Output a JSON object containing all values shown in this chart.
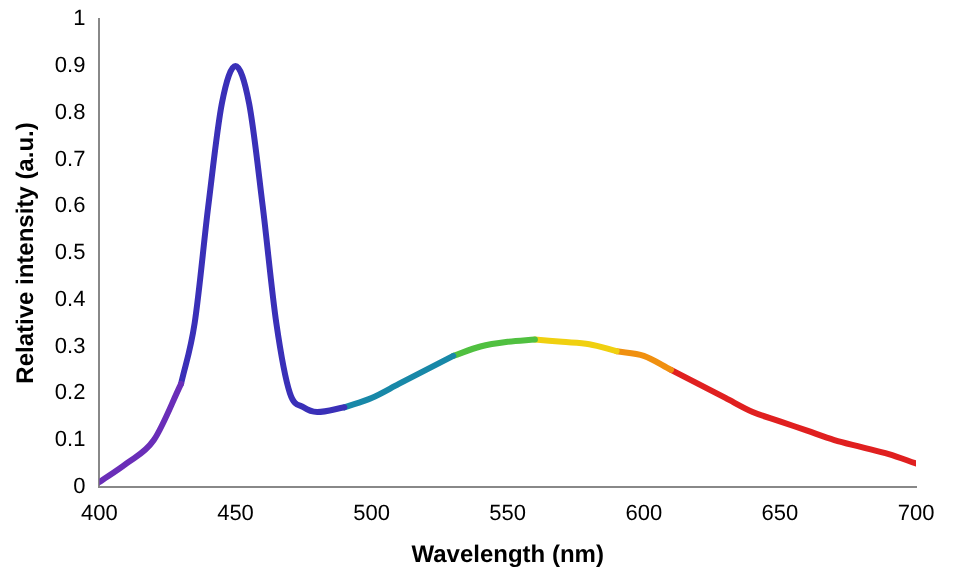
{
  "chart_data": {
    "type": "line",
    "xlabel": "Wavelength (nm)",
    "ylabel": "Relative intensity (a.u.)",
    "series": [
      {
        "color": "#6a2eb8",
        "x": [
          400,
          410,
          420,
          430
        ],
        "values": [
          0.01,
          0.05,
          0.1,
          0.22
        ]
      },
      {
        "color": "#3a30b8",
        "x": [
          430,
          435,
          440,
          445,
          450,
          455,
          460,
          465,
          470,
          475,
          480,
          490
        ],
        "values": [
          0.22,
          0.35,
          0.6,
          0.82,
          0.9,
          0.82,
          0.6,
          0.35,
          0.2,
          0.17,
          0.16,
          0.17
        ]
      },
      {
        "color": "#1888a8",
        "x": [
          490,
          500,
          510,
          520,
          530
        ],
        "values": [
          0.17,
          0.19,
          0.22,
          0.25,
          0.28
        ]
      },
      {
        "color": "#50c040",
        "x": [
          530,
          540,
          550,
          560
        ],
        "values": [
          0.28,
          0.3,
          0.31,
          0.315
        ]
      },
      {
        "color": "#f0d010",
        "x": [
          560,
          570,
          580,
          590
        ],
        "values": [
          0.315,
          0.31,
          0.305,
          0.29
        ]
      },
      {
        "color": "#f09010",
        "x": [
          590,
          600,
          610
        ],
        "values": [
          0.29,
          0.28,
          0.25
        ]
      },
      {
        "color": "#e02020",
        "x": [
          610,
          620,
          630,
          640,
          650,
          660,
          670,
          680,
          690,
          700
        ],
        "values": [
          0.25,
          0.22,
          0.19,
          0.16,
          0.14,
          0.12,
          0.1,
          0.085,
          0.07,
          0.05
        ]
      }
    ],
    "xlim": [
      400,
      700
    ],
    "xticks": [
      400,
      450,
      500,
      550,
      600,
      650,
      700
    ],
    "ylim": [
      0,
      1
    ],
    "yticks": [
      0,
      0.1,
      0.2,
      0.3,
      0.4,
      0.5,
      0.6,
      0.7,
      0.8,
      0.9,
      1
    ],
    "grid": false,
    "legend": false,
    "marker": "none",
    "line_style": "solid"
  }
}
